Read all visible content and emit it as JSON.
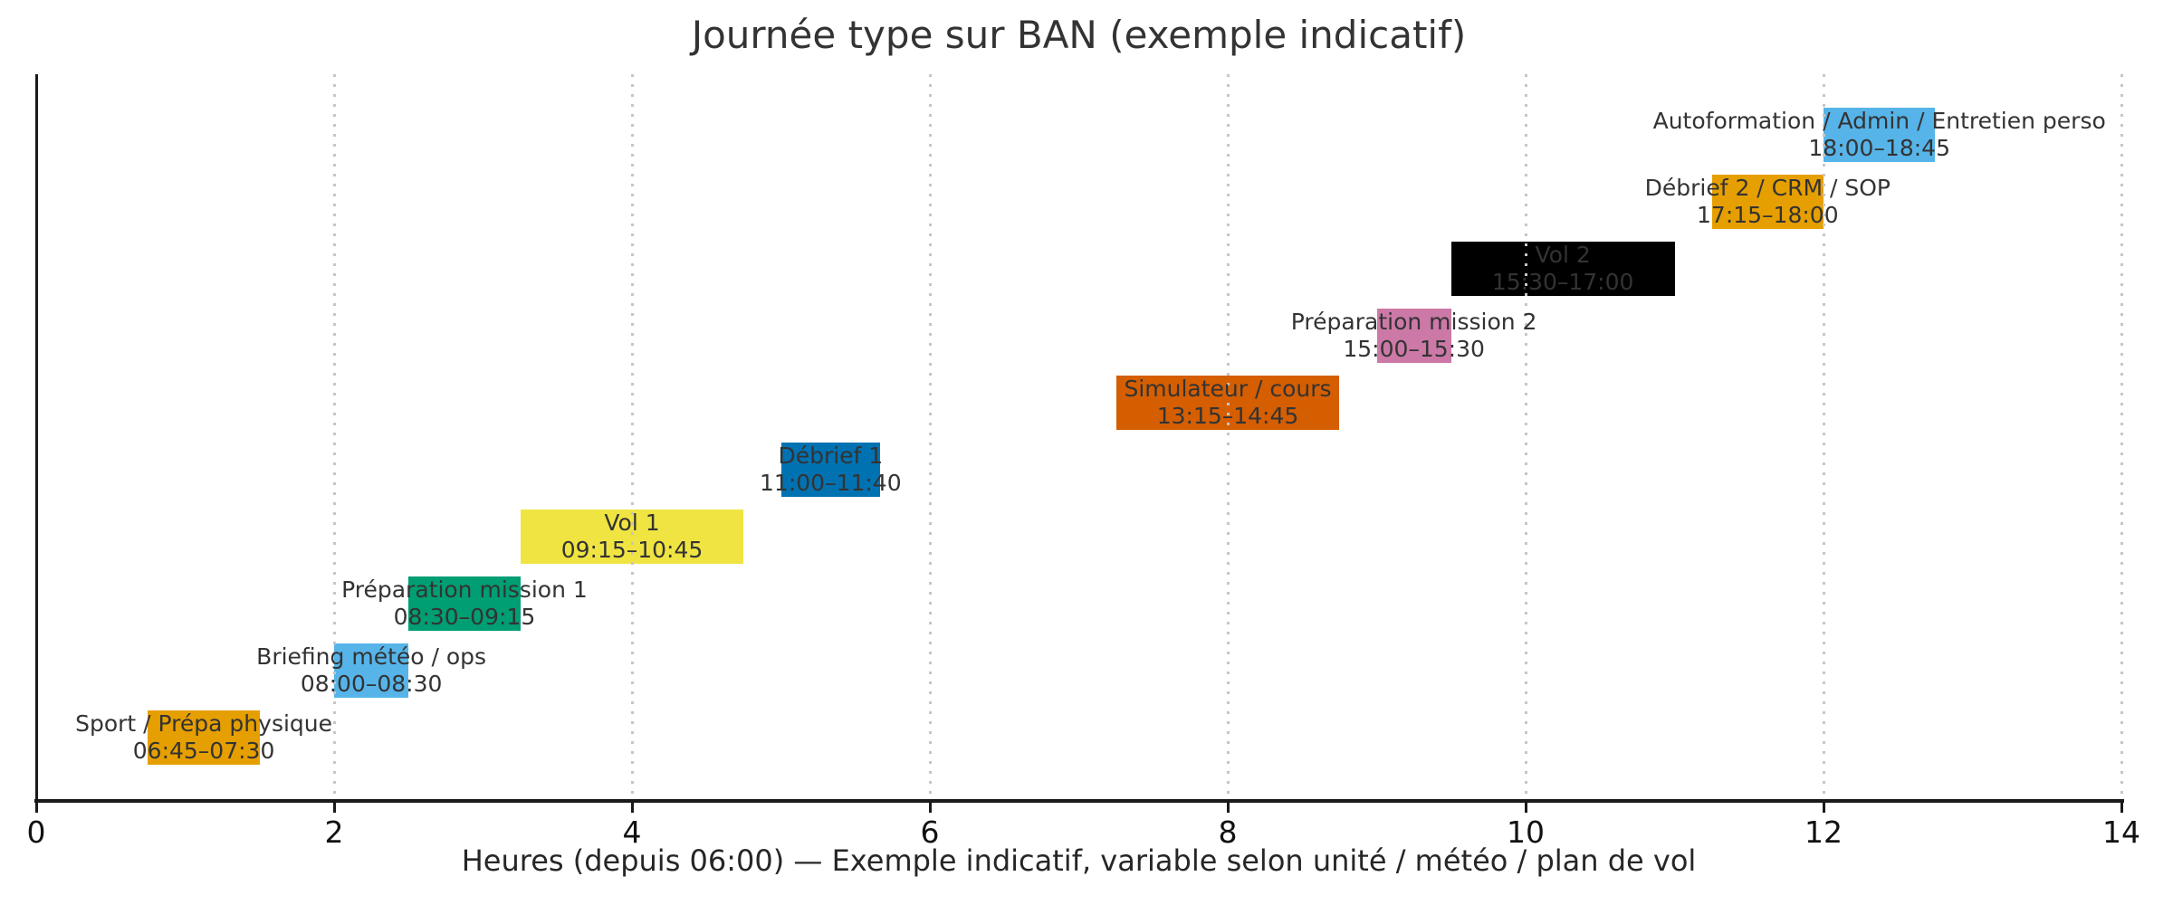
{
  "chart_data": {
    "type": "bar",
    "subtype": "gantt-horizontal",
    "title": "Journée type sur BAN (exemple indicatif)",
    "xlabel": "Heures (depuis 06:00) — Exemple indicatif, variable selon unité / météo / plan de vol",
    "ylabel": "",
    "xlim": [
      0,
      14
    ],
    "xticks": [
      0,
      2,
      4,
      6,
      8,
      10,
      12,
      14
    ],
    "grid": "vertical-dotted-over-bars",
    "legend": "none",
    "bar_label_color": "#333333",
    "palette_note": "Okabe-Ito",
    "task_order": "bottom-to-top",
    "tasks": [
      {
        "label": "Sport / Prépa physique",
        "time": "06:45–07:30",
        "start": 0.75,
        "end": 1.5,
        "color": "#E69F00"
      },
      {
        "label": "Briefing météo / ops",
        "time": "08:00–08:30",
        "start": 2.0,
        "end": 2.5,
        "color": "#56B4E9"
      },
      {
        "label": "Préparation mission 1",
        "time": "08:30–09:15",
        "start": 2.5,
        "end": 3.25,
        "color": "#009E73"
      },
      {
        "label": "Vol 1",
        "time": "09:15–10:45",
        "start": 3.25,
        "end": 4.75,
        "color": "#F0E442"
      },
      {
        "label": "Débrief 1",
        "time": "11:00–11:40",
        "start": 5.0,
        "end": 5.6667,
        "color": "#0072B2"
      },
      {
        "label": "Simulateur / cours",
        "time": "13:15–14:45",
        "start": 7.25,
        "end": 8.75,
        "color": "#D55E00"
      },
      {
        "label": "Préparation mission 2",
        "time": "15:00–15:30",
        "start": 9.0,
        "end": 9.5,
        "color": "#CC79A7"
      },
      {
        "label": "Vol 2",
        "time": "15:30–17:00",
        "start": 9.5,
        "end": 11.0,
        "color": "#000000"
      },
      {
        "label": "Débrief 2 / CRM / SOP",
        "time": "17:15–18:00",
        "start": 11.25,
        "end": 12.0,
        "color": "#E69F00"
      },
      {
        "label": "Autoformation / Admin / Entretien perso",
        "time": "18:00–18:45",
        "start": 12.0,
        "end": 12.75,
        "color": "#56B4E9"
      }
    ]
  }
}
